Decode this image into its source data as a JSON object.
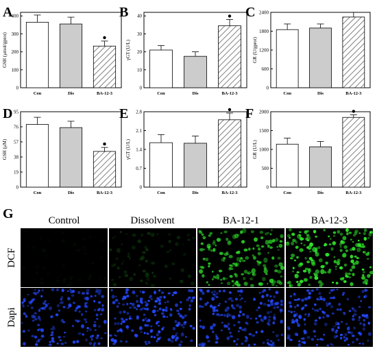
{
  "figure": {
    "panel_letters": [
      "A",
      "B",
      "C",
      "D",
      "E",
      "F",
      "G"
    ],
    "micro_columns": [
      "Control",
      "Dissolvent",
      "BA-12-1",
      "BA-12-3"
    ],
    "micro_rows": [
      "DCF",
      "Dapi"
    ],
    "micro_brightness": [
      [
        0.04,
        0.18,
        0.75,
        0.92
      ],
      [
        0.8,
        0.9,
        0.82,
        0.85
      ]
    ],
    "colors": {
      "bar_edge": "#000000",
      "con_fill": "#ffffff",
      "dis_fill": "#cccccc",
      "ba_hatch": "#808080",
      "dcf_green": "#2fe02a",
      "dapi_blue": "#2448ff"
    }
  },
  "chart_data": [
    {
      "panel": "A",
      "type": "bar",
      "categories": [
        "Con",
        "Dis",
        "BA-12-3"
      ],
      "values": [
        365,
        355,
        232
      ],
      "errors": [
        40,
        38,
        28
      ],
      "significant": [
        false,
        false,
        true
      ],
      "ylabel": "GSH (μmol/gprot)",
      "ylim": [
        0,
        420
      ],
      "yticks": [
        0,
        100,
        200,
        300,
        400
      ]
    },
    {
      "panel": "B",
      "type": "bar",
      "categories": [
        "Con",
        "Dis",
        "BA-12-3"
      ],
      "values": [
        21,
        17.5,
        34.5
      ],
      "errors": [
        2.5,
        2.5,
        3.5
      ],
      "significant": [
        false,
        false,
        true
      ],
      "ylabel": "γGT (U/L)",
      "ylim": [
        0,
        42
      ],
      "yticks": [
        0,
        10,
        20,
        30,
        40
      ]
    },
    {
      "panel": "C",
      "type": "bar",
      "categories": [
        "Con",
        "Dis",
        "BA-12-3"
      ],
      "values": [
        1850,
        1900,
        2250
      ],
      "errors": [
        180,
        130,
        150
      ],
      "significant": [
        false,
        false,
        false
      ],
      "ylabel": "GR (U/gprot)",
      "ylim": [
        0,
        2400
      ],
      "yticks": [
        0,
        600,
        1200,
        1800,
        2400
      ]
    },
    {
      "panel": "D",
      "type": "bar",
      "categories": [
        "Con",
        "Dis",
        "BA-12-3"
      ],
      "values": [
        79,
        75,
        45
      ],
      "errors": [
        9,
        8,
        5
      ],
      "significant": [
        false,
        false,
        true
      ],
      "ylabel": "GSH (μM)",
      "ylim": [
        0,
        95
      ],
      "yticks": [
        0,
        19,
        38,
        57,
        76,
        95
      ]
    },
    {
      "panel": "E",
      "type": "bar",
      "categories": [
        "Con",
        "Dis",
        "BA-12-3"
      ],
      "values": [
        1.65,
        1.63,
        2.5
      ],
      "errors": [
        0.3,
        0.27,
        0.25
      ],
      "significant": [
        false,
        false,
        true
      ],
      "ylabel": "γGT (U/L)",
      "ylim": [
        0,
        2.8
      ],
      "yticks": [
        0,
        0.7,
        1.4,
        2.1,
        2.8
      ]
    },
    {
      "panel": "F",
      "type": "bar",
      "categories": [
        "Con",
        "Dis",
        "BA-12-3"
      ],
      "values": [
        1140,
        1070,
        1850
      ],
      "errors": [
        160,
        140,
        70
      ],
      "significant": [
        false,
        false,
        true
      ],
      "ylabel": "GR (U/L)",
      "ylim": [
        0,
        2000
      ],
      "yticks": [
        0,
        500,
        1000,
        1500,
        2000
      ]
    }
  ]
}
